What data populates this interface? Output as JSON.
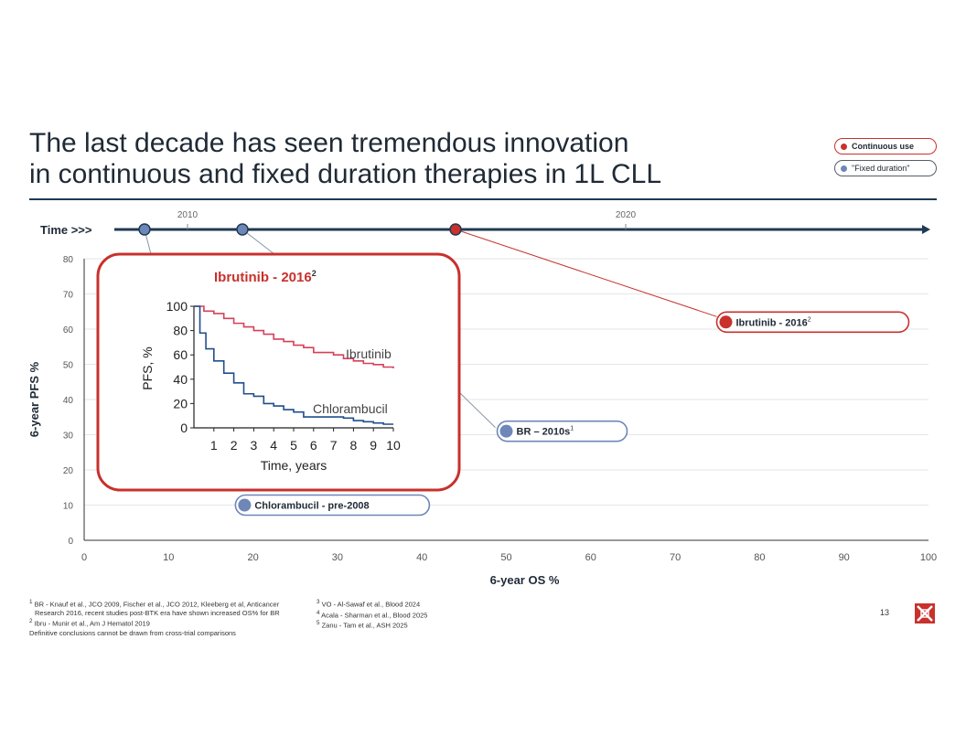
{
  "title": {
    "line1": "The last decade has seen tremendous innovation",
    "line2": "in continuous and fixed duration therapies in 1L CLL"
  },
  "legend": [
    {
      "label": "Continuous use",
      "color": "#c8312c"
    },
    {
      "label": "\"Fixed duration\"",
      "color": "#6e87b8"
    }
  ],
  "timeline": {
    "label": "Time >>>",
    "ticks": [
      "2010",
      "2020"
    ]
  },
  "colors": {
    "red": "#c8312c",
    "blue": "#6e87b8",
    "navy": "#1f3a52",
    "grid": "#e3e6ea",
    "kmblue": "#1f4e8c",
    "kmred": "#d6405a"
  },
  "chart_data": {
    "type": "scatter",
    "title": "",
    "xlabel": "6-year OS %",
    "ylabel": "6-year PFS %",
    "xlim": [
      0,
      100
    ],
    "ylim": [
      0,
      80
    ],
    "xticks": [
      "0",
      "10",
      "20",
      "30",
      "40",
      "50",
      "60",
      "70",
      "80",
      "90",
      "100"
    ],
    "yticks": [
      "0",
      "10",
      "20",
      "30",
      "40",
      "50",
      "60",
      "70",
      "80"
    ],
    "points": [
      {
        "label": "Ibrutinib - 2016",
        "sup": "2",
        "x": 76,
        "y": 62,
        "category": "Continuous use"
      },
      {
        "label": "BR – 2010s",
        "sup": "1",
        "x": 50,
        "y": 31,
        "category": "Fixed duration"
      },
      {
        "label": "Chlorambucil - pre-2008",
        "x": 19,
        "y": 10,
        "category": "Fixed duration"
      }
    ],
    "inset": {
      "title": "Ibrutinib - 2016",
      "title_sup": "2",
      "type": "line",
      "xlabel": "Time, years",
      "ylabel": "PFS, %",
      "xticks": [
        "1",
        "2",
        "3",
        "4",
        "5",
        "6",
        "7",
        "8",
        "9",
        "10"
      ],
      "yticks": [
        "0",
        "20",
        "40",
        "60",
        "80",
        "100"
      ],
      "series": [
        {
          "name": "Ibrutinib",
          "x": [
            0,
            0.5,
            1,
            1.5,
            2,
            2.5,
            3,
            3.5,
            4,
            4.5,
            5,
            5.5,
            6,
            6.5,
            7,
            7.5,
            8,
            8.5,
            9,
            9.5,
            10
          ],
          "y": [
            100,
            96,
            94,
            90,
            86,
            83,
            80,
            77,
            73,
            71,
            68,
            66,
            62,
            62,
            60,
            57,
            55,
            53,
            52,
            50,
            49
          ]
        },
        {
          "name": "Chlorambucil",
          "x": [
            0,
            0.3,
            0.6,
            1,
            1.5,
            2,
            2.5,
            3,
            3.5,
            4,
            4.5,
            5,
            5.5,
            6,
            6.5,
            7,
            7.5,
            8,
            8.5,
            9,
            9.5,
            10
          ],
          "y": [
            100,
            78,
            65,
            55,
            45,
            37,
            28,
            26,
            20,
            18,
            15,
            13,
            9,
            9,
            9,
            9,
            8,
            6,
            5,
            4,
            3,
            3
          ]
        }
      ]
    }
  },
  "footnotes": {
    "left": [
      {
        "num": "1",
        "text": "BR - Knauf et al., JCO 2009, Fischer et al., JCO 2012, Kleeberg et al, Anticancer"
      },
      {
        "num": "",
        "text": "Research 2016, recent studies post-BTK era have shown increased OS% for BR"
      },
      {
        "num": "2",
        "text": "Ibru - Munir et al., Am J Hematol 2019"
      }
    ],
    "disclaimer": "Definitive conclusions cannot be drawn from cross-trial comparisons",
    "right": [
      {
        "num": "3",
        "text": "VO - Al-Sawaf et al., Blood 2024"
      },
      {
        "num": "4",
        "text": "Acala - Sharman et al., Blood 2025"
      },
      {
        "num": "5",
        "text": "Zanu - Tam et al., ASH 2025"
      }
    ]
  },
  "page_number": "13"
}
